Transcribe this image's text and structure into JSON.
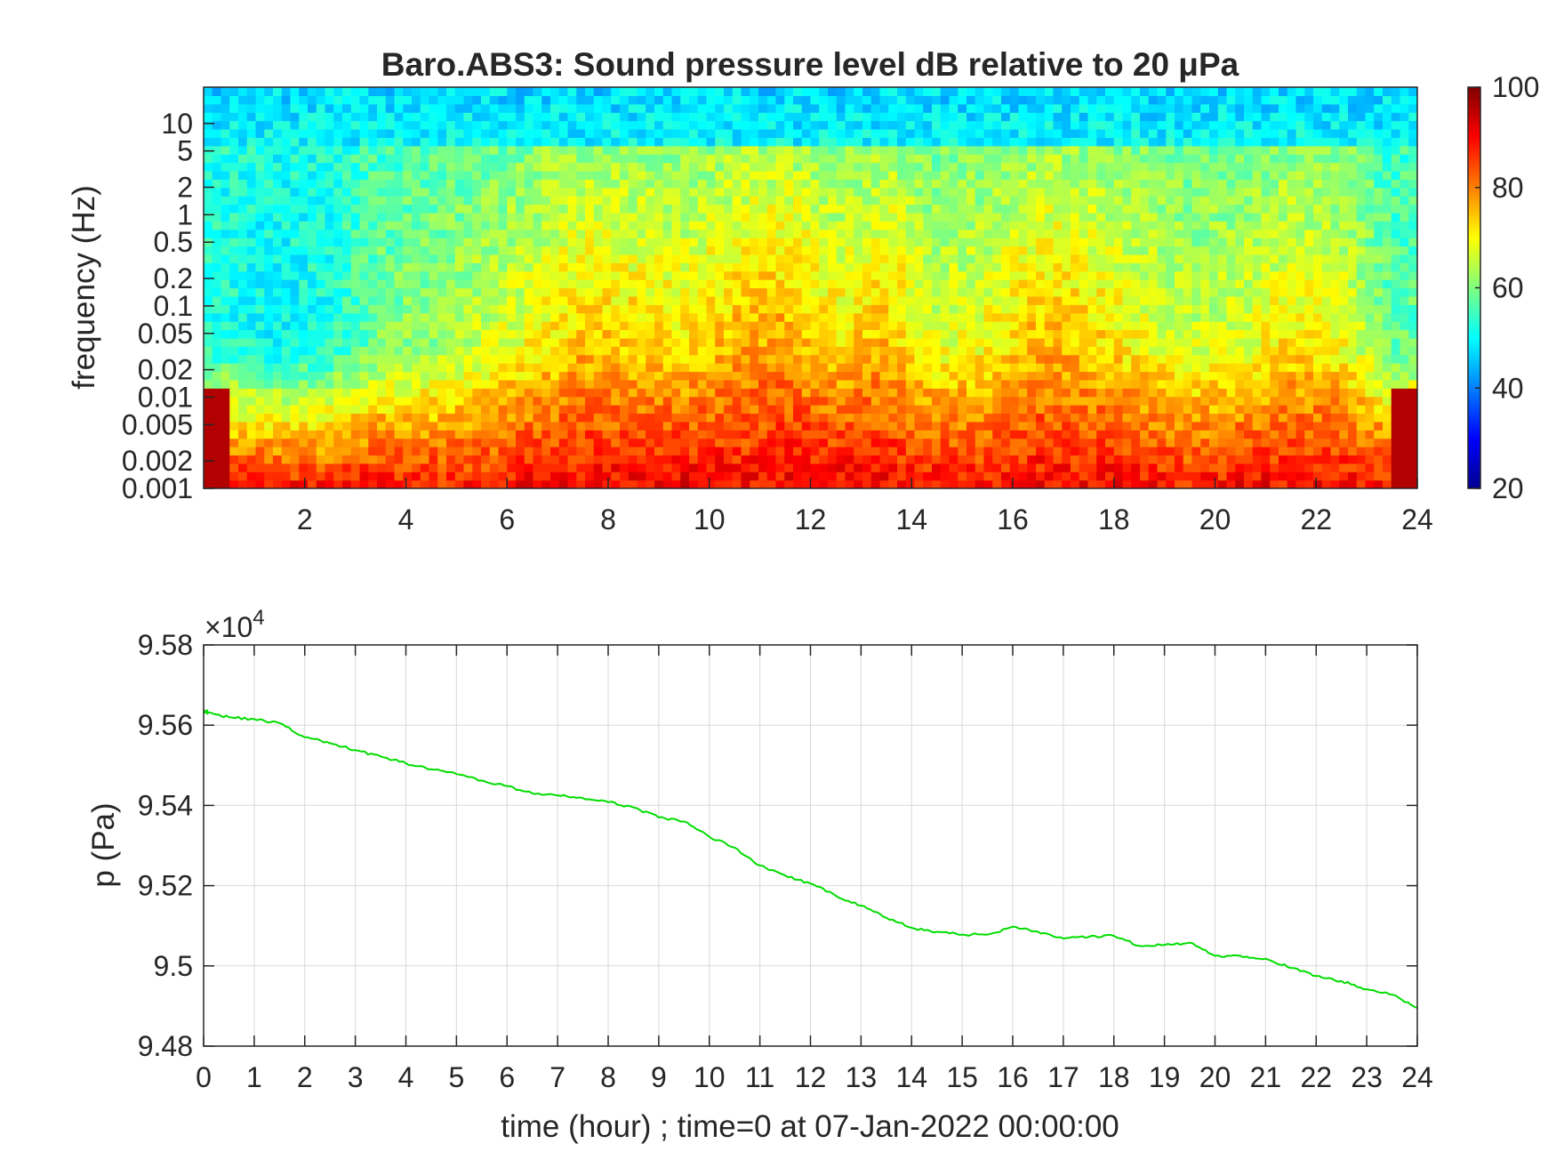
{
  "figure": {
    "title": "Baro.ABS3: Sound pressure level dB relative to 20 μPa"
  },
  "chart_data": [
    {
      "type": "heatmap",
      "title": "Baro.ABS3: Sound pressure level dB relative to 20 μPa",
      "xlabel": "",
      "ylabel": "frequency (Hz)",
      "xlim": [
        0,
        24
      ],
      "ylim": [
        0.001,
        25
      ],
      "yscale": "log",
      "x_ticks": [
        2,
        4,
        6,
        8,
        10,
        12,
        14,
        16,
        18,
        20,
        22,
        24
      ],
      "y_ticks": [
        0.001,
        0.002,
        0.005,
        0.01,
        0.02,
        0.05,
        0.1,
        0.2,
        0.5,
        1,
        2,
        5,
        10
      ],
      "y_tick_labels": [
        "0.001",
        "0.002",
        "0.005",
        "0.01",
        "0.02",
        "0.05",
        "0.1",
        "0.2",
        "0.5",
        "1",
        "2",
        "5",
        "10"
      ],
      "colorbar": {
        "colormap": "jet",
        "range": [
          20,
          100
        ],
        "ticks": [
          20,
          40,
          60,
          80,
          100
        ],
        "placement": "right"
      },
      "time_profile_hours": [
        0.5,
        1.5,
        2.5,
        3.5,
        4.5,
        5.5,
        6.5,
        7.5,
        8.5,
        9.5,
        10.5,
        11.5,
        12.5,
        13.5,
        14.5,
        15.5,
        16.5,
        17.5,
        18.5,
        19.5,
        20.5,
        21.5,
        22.5,
        23.5
      ],
      "high_band_level_db": [
        52,
        50,
        52,
        60,
        62,
        66,
        70,
        75,
        74,
        72,
        76,
        78,
        72,
        76,
        68,
        70,
        76,
        74,
        70,
        66,
        68,
        72,
        70,
        58
      ],
      "low_band_level_db": [
        90,
        90,
        88,
        90,
        88,
        88,
        90,
        90,
        90,
        92,
        90,
        90,
        92,
        90,
        90,
        88,
        90,
        90,
        90,
        88,
        90,
        90,
        90,
        90
      ],
      "grid": false
    },
    {
      "type": "line",
      "title": "",
      "xlabel": "time (hour) ; time=0 at 07-Jan-2022 00:00:00",
      "ylabel": "p (Pa)",
      "y_exponent_label": "×10",
      "y_exponent_power": "4",
      "xlim": [
        0,
        24
      ],
      "ylim": [
        94800,
        95800
      ],
      "x_ticks": [
        0,
        1,
        2,
        3,
        4,
        5,
        6,
        7,
        8,
        9,
        10,
        11,
        12,
        13,
        14,
        15,
        16,
        17,
        18,
        19,
        20,
        21,
        22,
        23,
        24
      ],
      "y_ticks": [
        94800,
        95000,
        95200,
        95400,
        95600,
        95800
      ],
      "y_tick_labels": [
        "9.48",
        "9.5",
        "9.52",
        "9.54",
        "9.56",
        "9.58"
      ],
      "grid": true,
      "series": [
        {
          "color": "#00dd00",
          "x": [
            0,
            0.1,
            0.5,
            1,
            1.5,
            2,
            2.5,
            3,
            3.5,
            4,
            4.5,
            5,
            5.5,
            6,
            6.5,
            7,
            7.5,
            8,
            8.5,
            9,
            9.5,
            10,
            10.5,
            11,
            11.5,
            12,
            12.5,
            13,
            13.5,
            14,
            14.5,
            15,
            15.5,
            16,
            16.5,
            17,
            17.5,
            18,
            18.5,
            19,
            19.5,
            20,
            20.5,
            21,
            21.5,
            22,
            22.5,
            23,
            23.5,
            24
          ],
          "y": [
            95635,
            95632,
            95620,
            95615,
            95605,
            95570,
            95555,
            95538,
            95522,
            95505,
            95490,
            95478,
            95462,
            95448,
            95430,
            95425,
            95418,
            95408,
            95395,
            95370,
            95360,
            95322,
            95295,
            95250,
            95225,
            95205,
            95175,
            95150,
            95120,
            95095,
            95085,
            95078,
            95078,
            95098,
            95085,
            95068,
            95072,
            95075,
            95050,
            95052,
            95058,
            95025,
            95025,
            95018,
            94995,
            94975,
            94962,
            94942,
            94928,
            94895
          ]
        }
      ]
    }
  ]
}
